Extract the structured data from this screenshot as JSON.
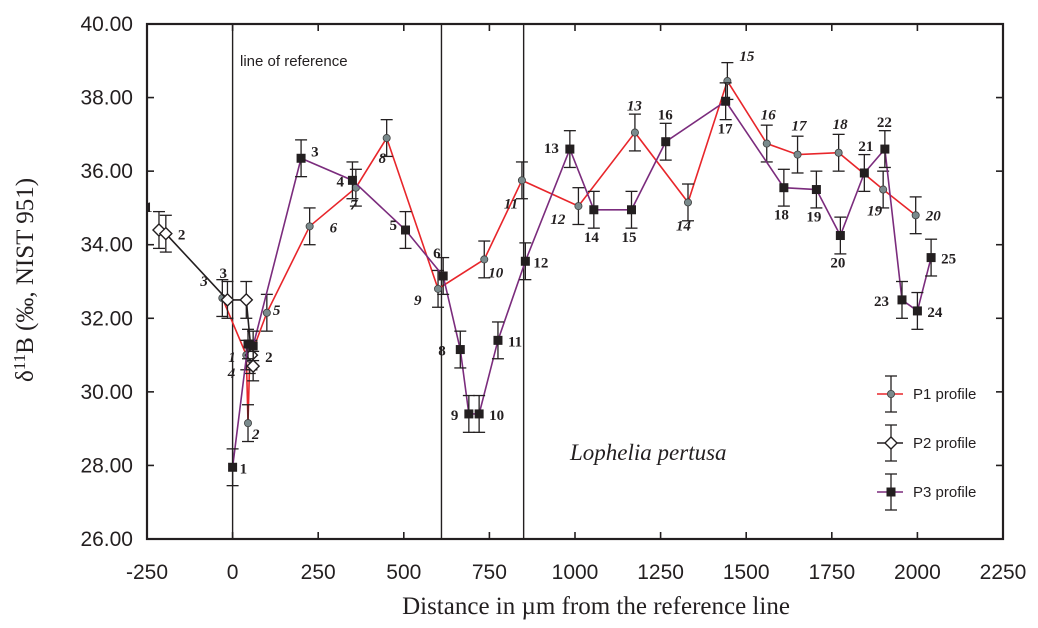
{
  "chart_data": {
    "type": "line",
    "xlabel": "Distance in µm from the reference line",
    "ylabel_main": "δ",
    "ylabel_sup": "11",
    "ylabel_rest": "B (‰, NIST 951)",
    "xlim": [
      -250,
      2250
    ],
    "ylim": [
      26,
      40
    ],
    "x_ticks": [
      -250,
      0,
      250,
      500,
      750,
      1000,
      1250,
      1500,
      1750,
      2000,
      2250
    ],
    "x_tick_labels": [
      "-250",
      "0",
      "250",
      "500",
      "750",
      "1000",
      "1250",
      "1500",
      "1750",
      "2000",
      "2250"
    ],
    "y_ticks": [
      26,
      28,
      30,
      32,
      34,
      36,
      38,
      40
    ],
    "y_tick_labels": [
      "26.00",
      "28.00",
      "30.00",
      "32.00",
      "34.00",
      "36.00",
      "38.00",
      "40.00"
    ],
    "vertical_lines": [
      0,
      610,
      850
    ],
    "annotations": {
      "reference_line": "line of reference",
      "species": "Lophelia pertusa"
    },
    "legend_position": "bottom-right",
    "series": [
      {
        "name": "P1 profile",
        "color": "#e8262b",
        "marker": "circle",
        "points": [
          {
            "label": "3",
            "x": -30,
            "y": 32.55,
            "err": 0.5
          },
          {
            "label": "1",
            "x": 40,
            "y": 31.0,
            "err": 0.4
          },
          {
            "label": "2",
            "x": 45,
            "y": 29.15,
            "err": 0.5
          },
          {
            "label": "4",
            "x": 50,
            "y": 30.9,
            "err": 0.4
          },
          {
            "label": "5",
            "x": 100,
            "y": 32.15,
            "err": 0.5
          },
          {
            "label": "6",
            "x": 225,
            "y": 34.5,
            "err": 0.5
          },
          {
            "label": "7",
            "x": 360,
            "y": 35.55,
            "err": 0.5
          },
          {
            "label": "8",
            "x": 450,
            "y": 36.9,
            "err": 0.5
          },
          {
            "label": "9",
            "x": 600,
            "y": 32.8,
            "err": 0.5
          },
          {
            "label": "10",
            "x": 735,
            "y": 33.6,
            "err": 0.5
          },
          {
            "label": "11",
            "x": 845,
            "y": 35.75,
            "err": 0.5
          },
          {
            "label": "12",
            "x": 1010,
            "y": 35.05,
            "err": 0.5
          },
          {
            "label": "13",
            "x": 1175,
            "y": 37.05,
            "err": 0.5
          },
          {
            "label": "14",
            "x": 1330,
            "y": 35.15,
            "err": 0.5
          },
          {
            "label": "15",
            "x": 1445,
            "y": 38.45,
            "err": 0.5
          },
          {
            "label": "16",
            "x": 1560,
            "y": 36.75,
            "err": 0.5
          },
          {
            "label": "17",
            "x": 1650,
            "y": 36.45,
            "err": 0.5
          },
          {
            "label": "18",
            "x": 1770,
            "y": 36.5,
            "err": 0.5
          },
          {
            "label": "19",
            "x": 1900,
            "y": 35.5,
            "err": 0.5
          },
          {
            "label": "20",
            "x": 1995,
            "y": 34.8,
            "err": 0.5
          }
        ]
      },
      {
        "name": "P2 profile",
        "color": "#231f20",
        "marker": "diamond",
        "points": [
          {
            "label": "1",
            "x": -215,
            "y": 34.4,
            "err": 0.5
          },
          {
            "label": "2",
            "x": -195,
            "y": 34.3,
            "err": 0.5
          },
          {
            "label": "3",
            "x": -15,
            "y": 32.5,
            "err": 0.5
          },
          {
            "label": "",
            "x": 40,
            "y": 32.5,
            "err": 0.5
          },
          {
            "label": "",
            "x": 55,
            "y": 31.0,
            "err": 0.4
          },
          {
            "label": "",
            "x": 60,
            "y": 30.7,
            "err": 0.4
          }
        ]
      },
      {
        "name": "P3 profile",
        "color": "#7b2c7d",
        "marker": "square",
        "points": [
          {
            "label": "1",
            "x": 0,
            "y": 27.95,
            "err": 0.5
          },
          {
            "label": "",
            "x": 45,
            "y": 31.3,
            "err": 0.4
          },
          {
            "label": "2",
            "x": 60,
            "y": 31.25,
            "err": 0.4
          },
          {
            "label": "3",
            "x": 200,
            "y": 36.35,
            "err": 0.5
          },
          {
            "label": "4",
            "x": 350,
            "y": 35.75,
            "err": 0.5
          },
          {
            "label": "5",
            "x": 505,
            "y": 34.4,
            "err": 0.5
          },
          {
            "label": "6",
            "x": 615,
            "y": 33.15,
            "err": 0.5
          },
          {
            "label": "8",
            "x": 665,
            "y": 31.15,
            "err": 0.5
          },
          {
            "label": "9",
            "x": 690,
            "y": 29.4,
            "err": 0.5
          },
          {
            "label": "10",
            "x": 720,
            "y": 29.4,
            "err": 0.5
          },
          {
            "label": "11",
            "x": 775,
            "y": 31.4,
            "err": 0.5
          },
          {
            "label": "12",
            "x": 855,
            "y": 33.55,
            "err": 0.5
          },
          {
            "label": "13",
            "x": 985,
            "y": 36.6,
            "err": 0.5
          },
          {
            "label": "14",
            "x": 1055,
            "y": 34.95,
            "err": 0.5
          },
          {
            "label": "15",
            "x": 1165,
            "y": 34.95,
            "err": 0.5
          },
          {
            "label": "16",
            "x": 1265,
            "y": 36.8,
            "err": 0.5
          },
          {
            "label": "17",
            "x": 1440,
            "y": 37.9,
            "err": 0.5
          },
          {
            "label": "18",
            "x": 1610,
            "y": 35.55,
            "err": 0.5
          },
          {
            "label": "19",
            "x": 1705,
            "y": 35.5,
            "err": 0.5
          },
          {
            "label": "20",
            "x": 1775,
            "y": 34.25,
            "err": 0.5
          },
          {
            "label": "21",
            "x": 1845,
            "y": 35.95,
            "err": 0.5
          },
          {
            "label": "22",
            "x": 1905,
            "y": 36.6,
            "err": 0.5
          },
          {
            "label": "23",
            "x": 1955,
            "y": 32.5,
            "err": 0.5
          },
          {
            "label": "24",
            "x": 2000,
            "y": 32.2,
            "err": 0.5
          },
          {
            "label": "25",
            "x": 2040,
            "y": 33.65,
            "err": 0.5
          }
        ]
      }
    ]
  }
}
